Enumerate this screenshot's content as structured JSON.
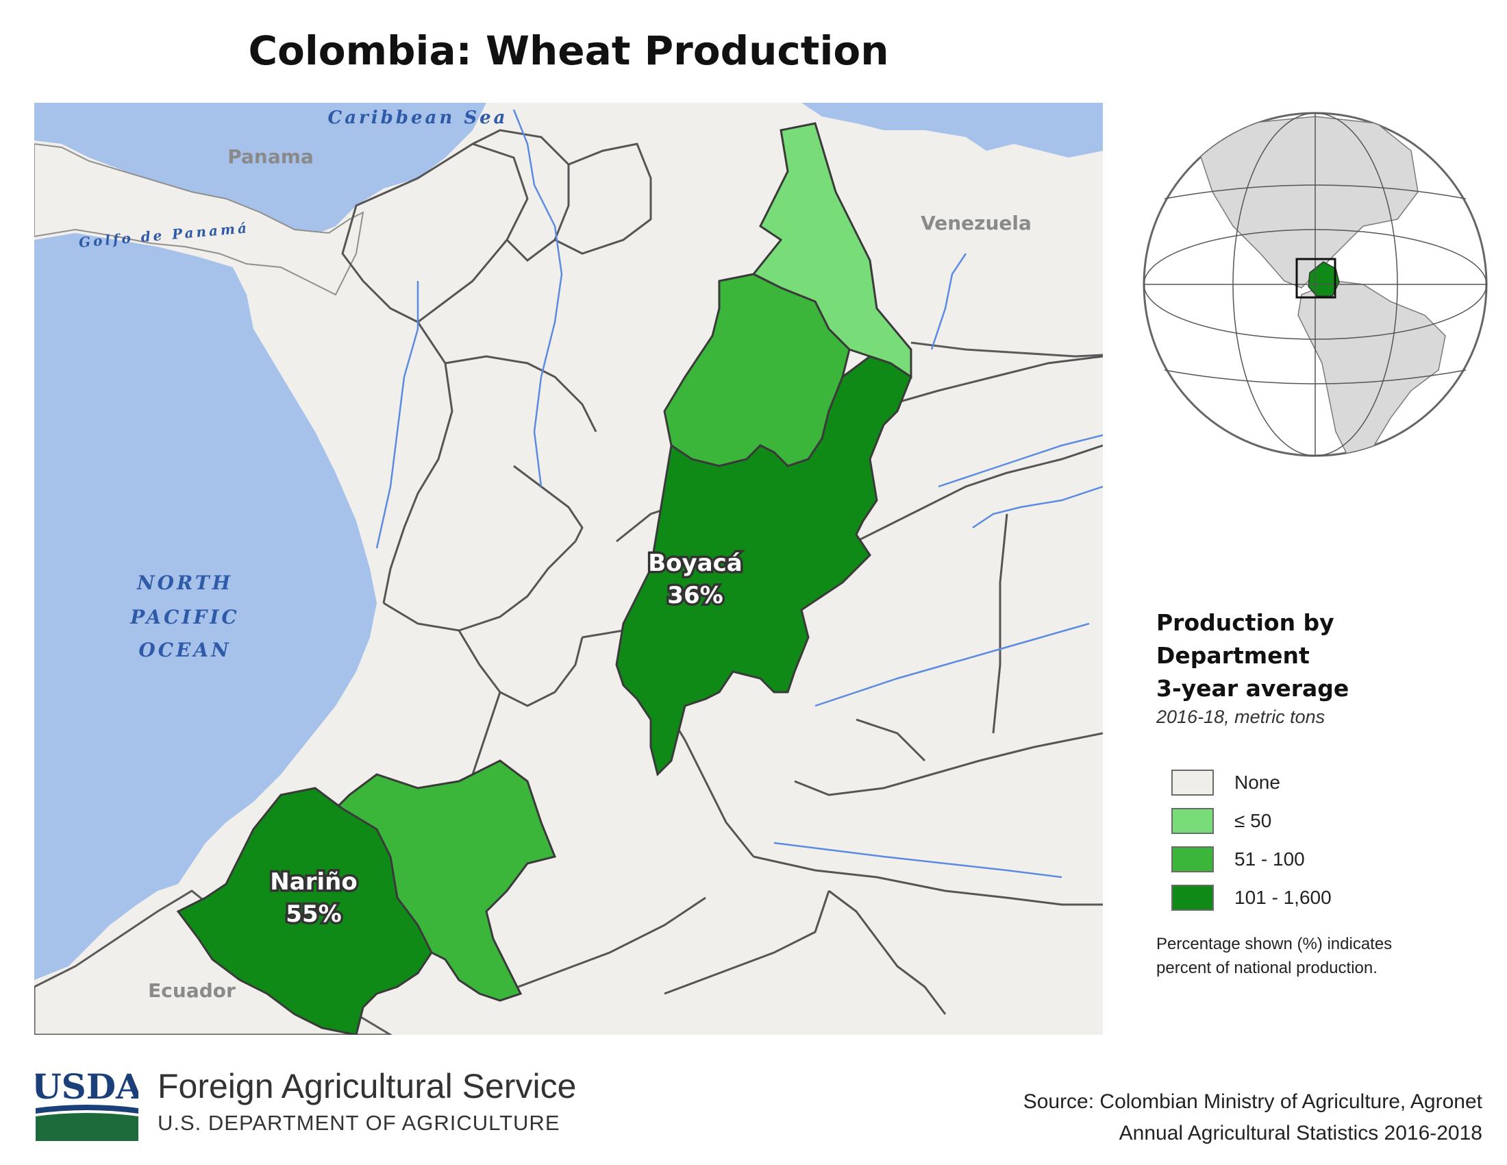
{
  "title": "Colombia: Wheat Production",
  "map": {
    "water_labels": [
      "Caribbean Sea",
      "Golfo de Panamá",
      "NORTH",
      "PACIFIC",
      "OCEAN"
    ],
    "country_labels": [
      "Panama",
      "Venezuela",
      "Ecuador"
    ],
    "departments": [
      {
        "name": "Boyacá",
        "share": "36%",
        "class": "101 - 1,600"
      },
      {
        "name": "Nariño",
        "share": "55%",
        "class": "101 - 1,600"
      }
    ],
    "colors": {
      "water": "#a7c2ea",
      "land": "#f0efeb",
      "none": "#efeee9",
      "low": "#78dc78",
      "mid": "#3bb63b",
      "high": "#0f8a16"
    }
  },
  "legend": {
    "title_line1": "Production by Department",
    "title_line2": "3-year average",
    "subtitle": "2016-18, metric tons",
    "items": [
      {
        "label": "None",
        "color": "#efeee9"
      },
      {
        "label": "≤ 50",
        "color": "#78dc78"
      },
      {
        "label": "51 - 100",
        "color": "#3bb63b"
      },
      {
        "label": "101 - 1,600",
        "color": "#0f8a16"
      }
    ],
    "note": "Percentage shown (%) indicates percent of national production."
  },
  "footer": {
    "logo_text": "USDA",
    "agency": "Foreign Agricultural Service",
    "department": "U.S. DEPARTMENT OF AGRICULTURE",
    "source_line1": "Source: Colombian Ministry of Agriculture, Agronet",
    "source_line2": "Annual Agricultural Statistics 2016-2018"
  }
}
